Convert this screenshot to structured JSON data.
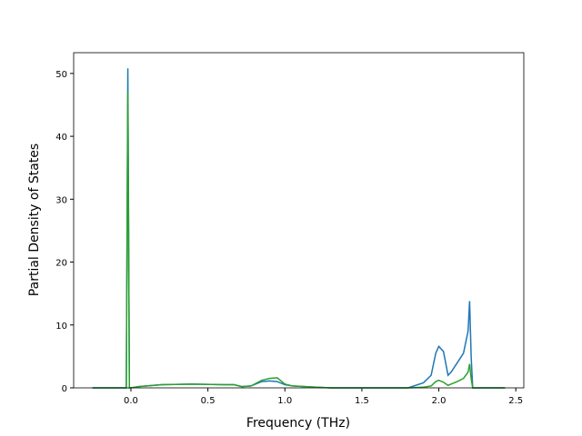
{
  "chart_data": {
    "type": "line",
    "x_label": "Frequency (THz)",
    "y_label": "Partial Density of States",
    "x": [
      -0.25,
      -0.05,
      -0.03,
      -0.02,
      -0.01,
      0.0,
      0.05,
      0.2,
      0.4,
      0.6,
      0.67,
      0.72,
      0.78,
      0.85,
      0.9,
      0.95,
      1.0,
      1.05,
      1.2,
      1.3,
      1.8,
      1.9,
      1.95,
      1.98,
      2.0,
      2.03,
      2.06,
      2.08,
      2.12,
      2.16,
      2.19,
      2.2,
      2.21,
      2.22,
      2.43
    ],
    "series": [
      {
        "color": "#1f77b4",
        "values": [
          0,
          0,
          0,
          50.8,
          0,
          0,
          0.2,
          0.5,
          0.6,
          0.5,
          0.5,
          0.2,
          0.3,
          1.0,
          1.1,
          1.0,
          0.5,
          0.3,
          0.1,
          0,
          0,
          0.8,
          2,
          5.5,
          6.6,
          5.8,
          2,
          2.5,
          4,
          5.5,
          9,
          13.8,
          5,
          0,
          0
        ]
      },
      {
        "color": "#2ca02c",
        "values": [
          0,
          0,
          0,
          47,
          0,
          0,
          0.2,
          0.5,
          0.6,
          0.5,
          0.5,
          0.2,
          0.3,
          1.2,
          1.5,
          1.6,
          0.6,
          0.3,
          0.1,
          0,
          0,
          0.1,
          0.3,
          1.0,
          1.2,
          0.9,
          0.4,
          0.6,
          1.0,
          1.5,
          2.5,
          3.8,
          1.5,
          0,
          0
        ]
      }
    ],
    "xlim": [
      -0.372,
      2.552
    ],
    "ylim": [
      0,
      53.3
    ],
    "xticks": [
      {
        "value": 0,
        "label": "0.0"
      },
      0.5,
      {
        "value": 1,
        "label": "1.0"
      },
      1.5,
      {
        "value": 2,
        "label": "2.0"
      },
      2.5
    ],
    "yticks": [
      0,
      10,
      20,
      30,
      40,
      50
    ],
    "grid": false
  }
}
